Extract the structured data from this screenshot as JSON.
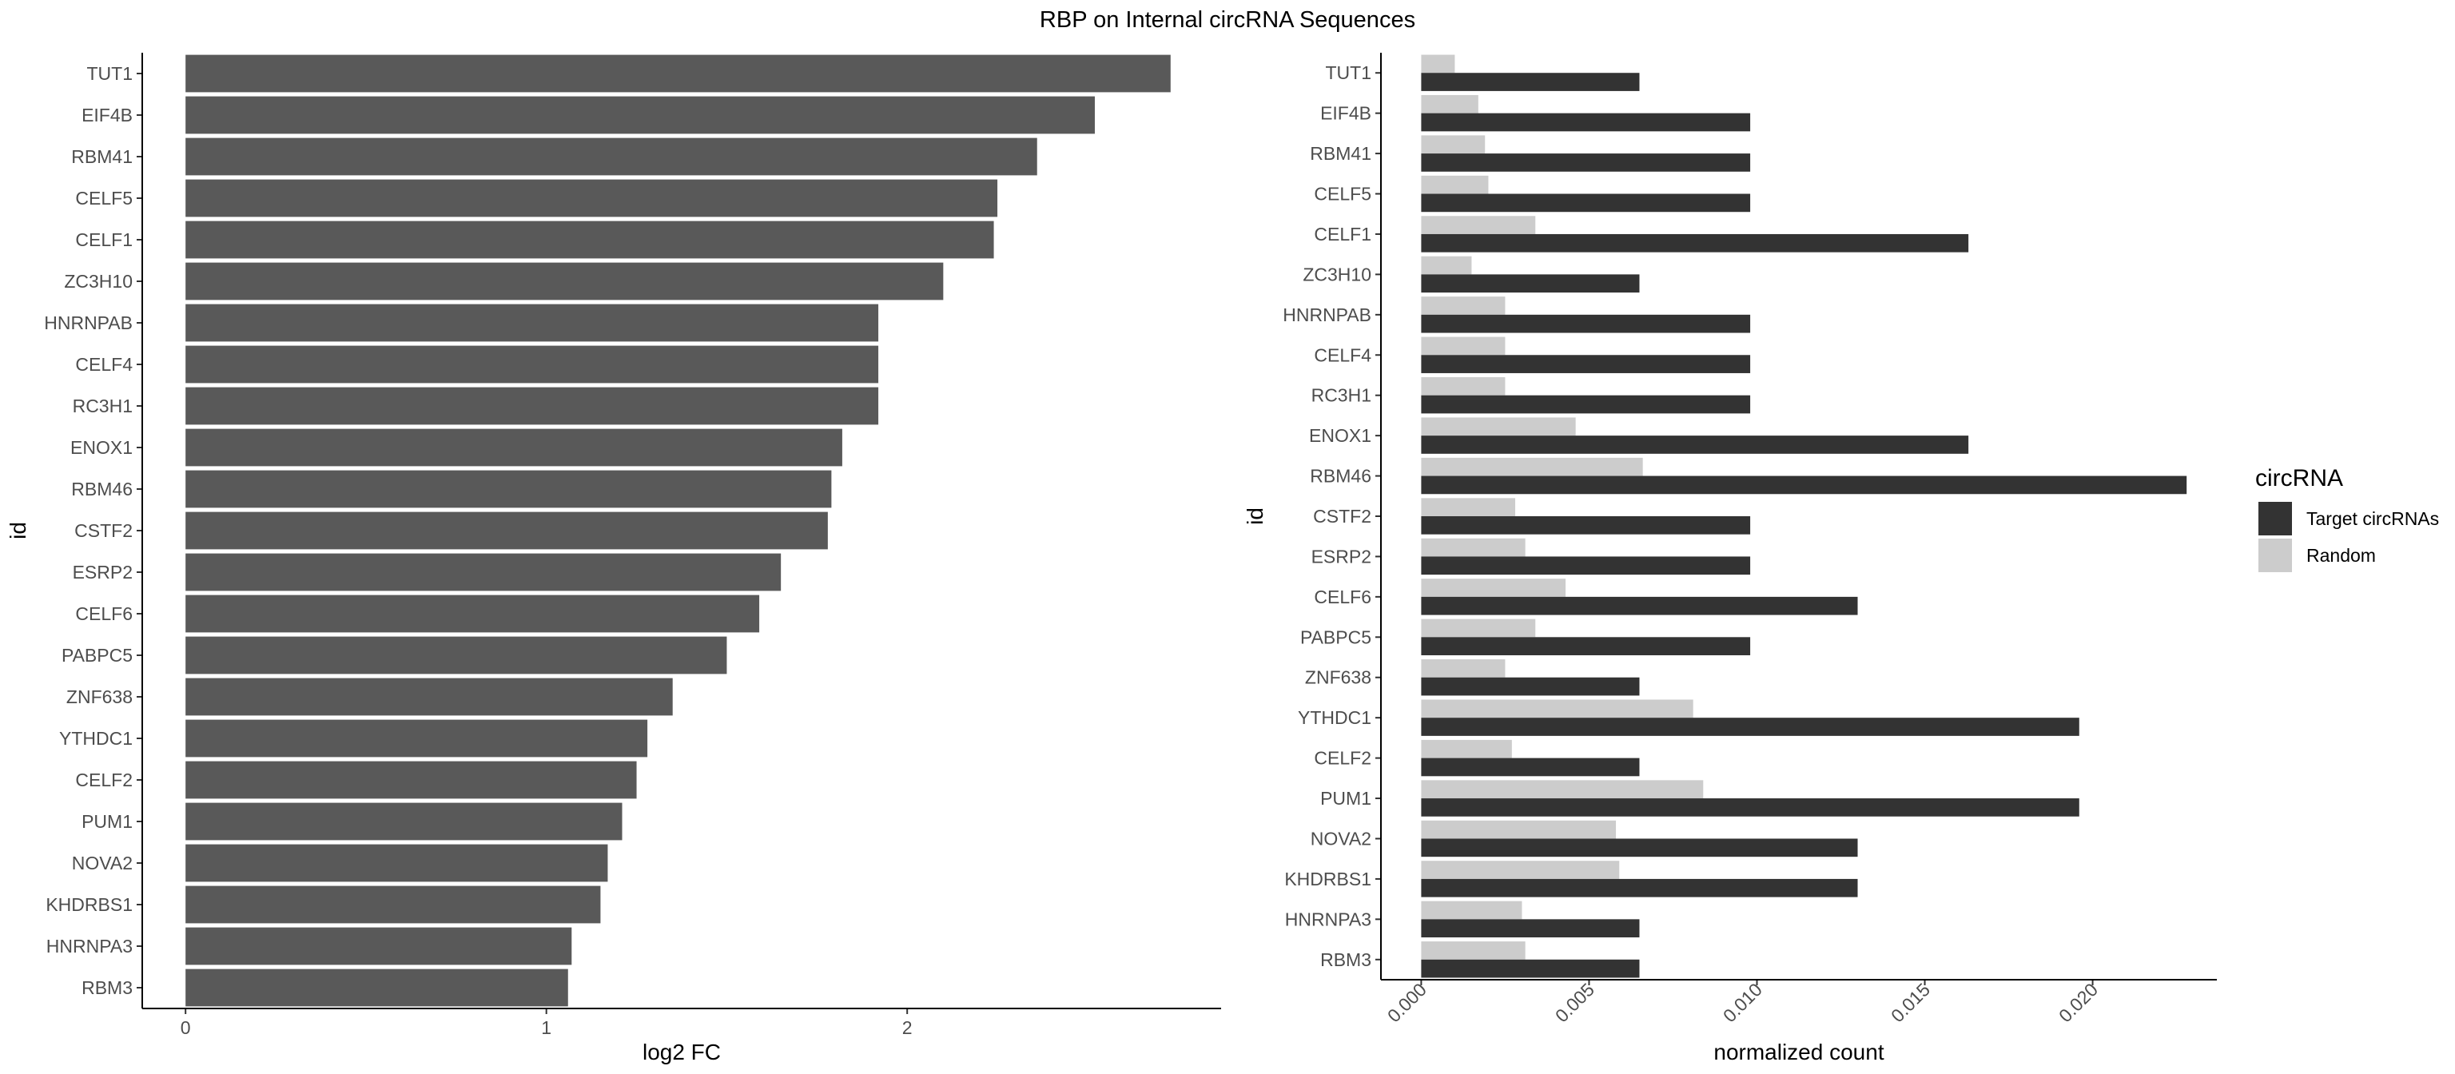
{
  "figure": {
    "title": "RBP on Internal circRNA Sequences"
  },
  "colors": {
    "bar_left": "#595959",
    "target": "#333333",
    "random": "#cccccc",
    "axis": "#000000",
    "tick_label": "#4d4d4d"
  },
  "chart_data": [
    {
      "type": "bar",
      "orientation": "horizontal",
      "xlabel": "log2 FC",
      "ylabel": "id",
      "xlim": [
        -0.12,
        2.87
      ],
      "xticks": [
        0,
        1,
        2
      ],
      "xtick_labels": [
        "0",
        "1",
        "2"
      ],
      "grid": false,
      "categories": [
        "TUT1",
        "EIF4B",
        "RBM41",
        "CELF5",
        "CELF1",
        "ZC3H10",
        "HNRNPAB",
        "CELF4",
        "RC3H1",
        "ENOX1",
        "RBM46",
        "CSTF2",
        "ESRP2",
        "CELF6",
        "PABPC5",
        "ZNF638",
        "YTHDC1",
        "CELF2",
        "PUM1",
        "NOVA2",
        "KHDRBS1",
        "HNRNPA3",
        "RBM3"
      ],
      "values": [
        2.73,
        2.52,
        2.36,
        2.25,
        2.24,
        2.1,
        1.92,
        1.92,
        1.92,
        1.82,
        1.79,
        1.78,
        1.65,
        1.59,
        1.5,
        1.35,
        1.28,
        1.25,
        1.21,
        1.17,
        1.15,
        1.07,
        1.06
      ]
    },
    {
      "type": "bar",
      "orientation": "horizontal",
      "xlabel": "normalized count",
      "ylabel": "id",
      "xlim": [
        -0.0012,
        0.0237
      ],
      "xticks": [
        0.0,
        0.005,
        0.01,
        0.015,
        0.02
      ],
      "xtick_labels": [
        "0.000",
        "0.005",
        "0.010",
        "0.015",
        "0.020"
      ],
      "grid": false,
      "legend": {
        "title": "circRNA",
        "position": "right",
        "entries": [
          "Target circRNAs",
          "Random"
        ]
      },
      "categories": [
        "TUT1",
        "EIF4B",
        "RBM41",
        "CELF5",
        "CELF1",
        "ZC3H10",
        "HNRNPAB",
        "CELF4",
        "RC3H1",
        "ENOX1",
        "RBM46",
        "CSTF2",
        "ESRP2",
        "CELF6",
        "PABPC5",
        "ZNF638",
        "YTHDC1",
        "CELF2",
        "PUM1",
        "NOVA2",
        "KHDRBS1",
        "HNRNPA3",
        "RBM3"
      ],
      "series": [
        {
          "name": "Target circRNAs",
          "values": [
            0.0065,
            0.0098,
            0.0098,
            0.0098,
            0.0163,
            0.0065,
            0.0098,
            0.0098,
            0.0098,
            0.0163,
            0.0228,
            0.0098,
            0.0098,
            0.013,
            0.0098,
            0.0065,
            0.0196,
            0.0065,
            0.0196,
            0.013,
            0.013,
            0.0065,
            0.0065
          ]
        },
        {
          "name": "Random",
          "values": [
            0.001,
            0.0017,
            0.0019,
            0.002,
            0.0034,
            0.0015,
            0.0025,
            0.0025,
            0.0025,
            0.0046,
            0.0066,
            0.0028,
            0.0031,
            0.0043,
            0.0034,
            0.0025,
            0.0081,
            0.0027,
            0.0084,
            0.0058,
            0.0059,
            0.003,
            0.0031
          ]
        }
      ]
    }
  ]
}
